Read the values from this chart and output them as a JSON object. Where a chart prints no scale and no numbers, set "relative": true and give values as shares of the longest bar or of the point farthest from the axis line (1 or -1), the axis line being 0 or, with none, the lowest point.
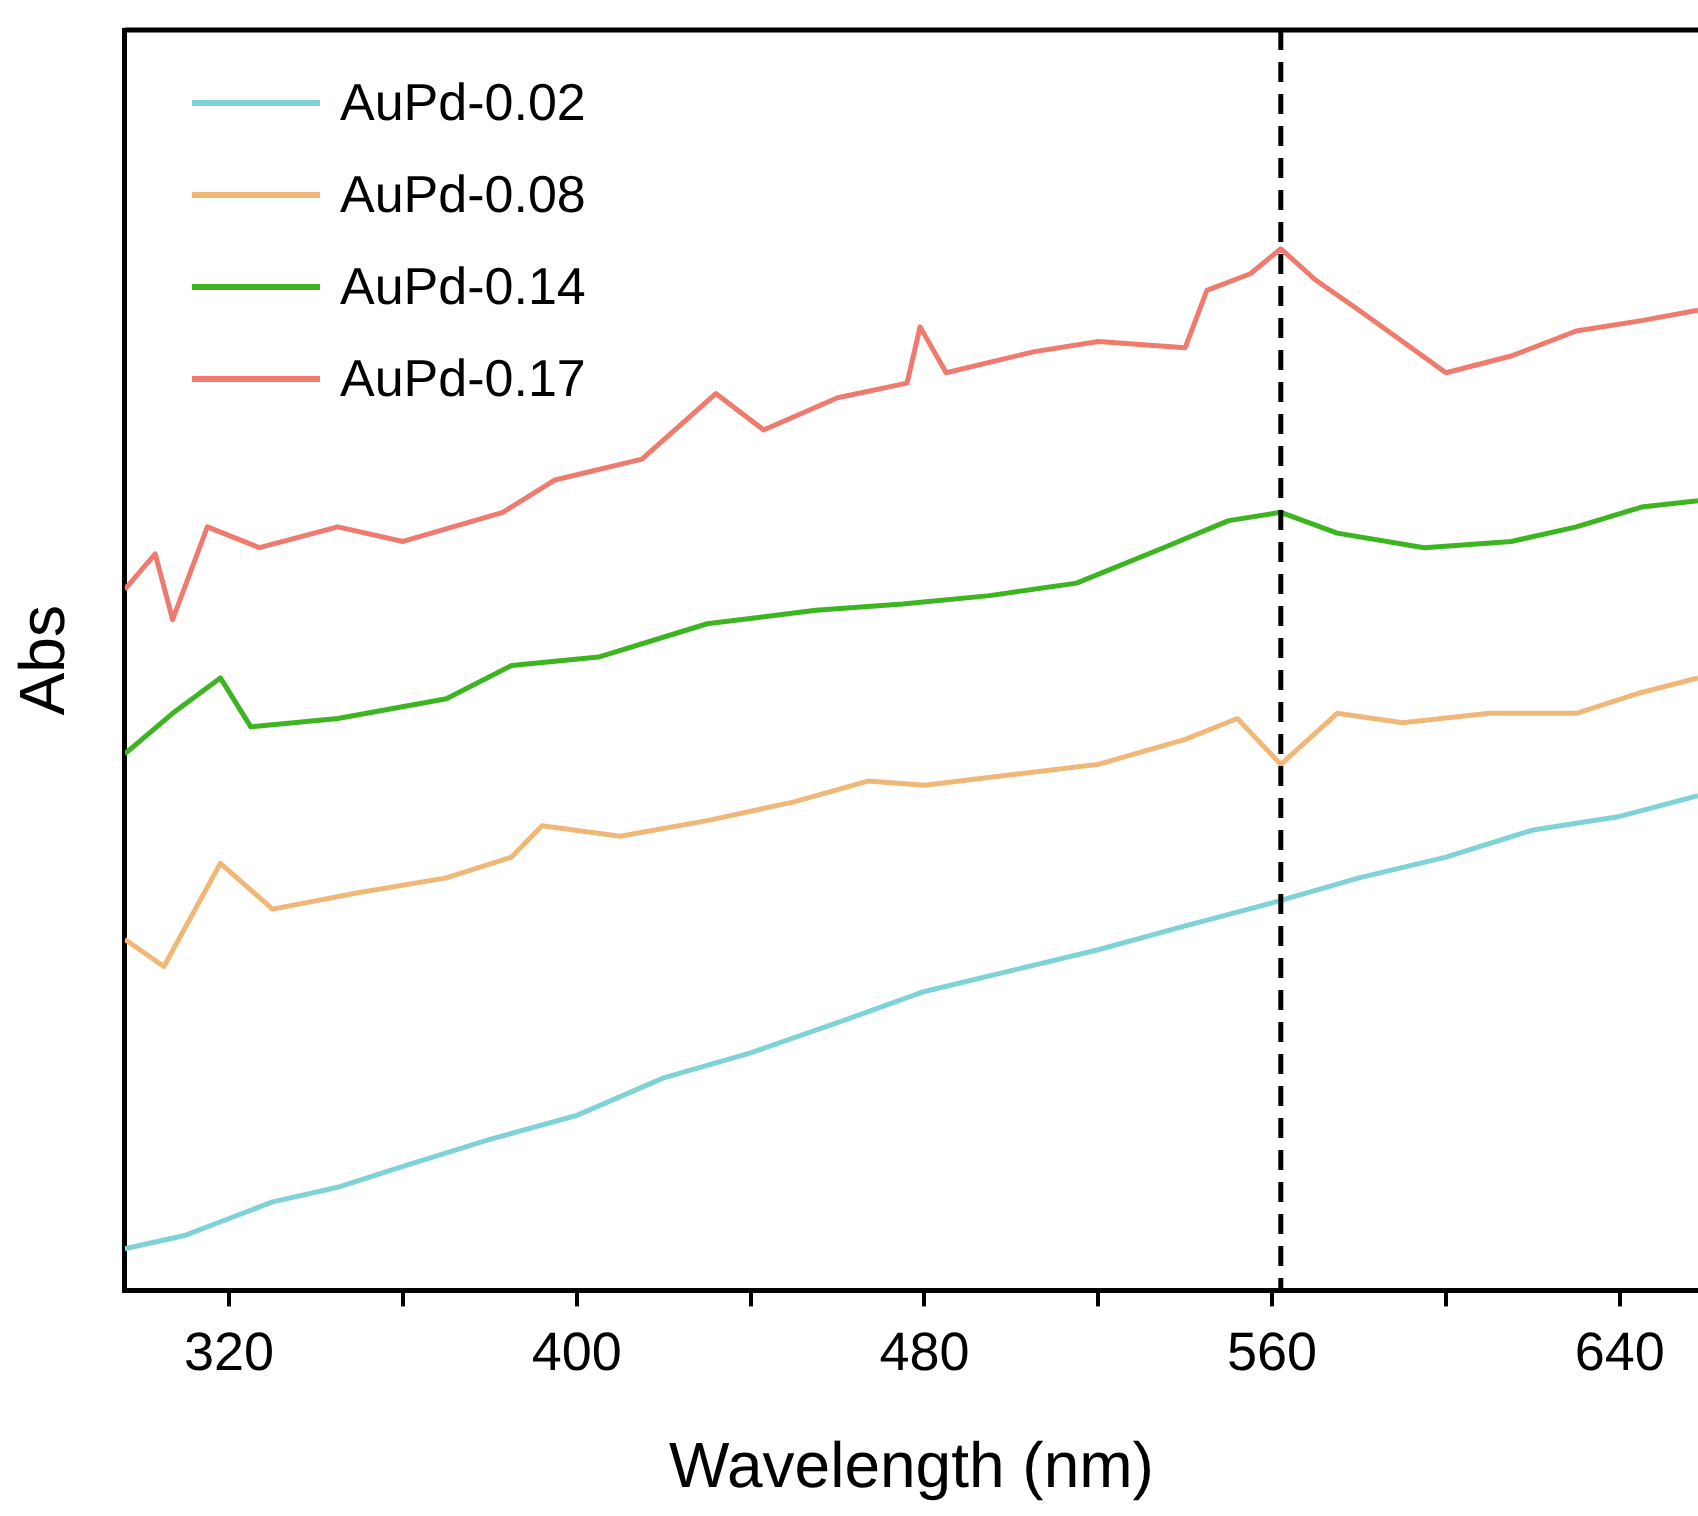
{
  "chart_data": {
    "type": "line",
    "xlabel": "Wavelength (nm)",
    "ylabel": "Abs",
    "relative": true,
    "xlim": [
      296,
      658
    ],
    "xticks": [
      320,
      {
        "value": 360,
        "label": null
      },
      400,
      {
        "value": 440,
        "label": null
      },
      480,
      {
        "value": 520,
        "label": null
      },
      560,
      {
        "value": 600,
        "label": null
      },
      640
    ],
    "legend": "top left",
    "marker": "none",
    "line_style": "solid",
    "grid": false,
    "ref_lines": [
      {
        "axis": "x",
        "value": 562,
        "label": null,
        "color": "#000000",
        "line_style": "dashed"
      }
    ],
    "series": [
      {
        "name": "AuPd-0.02",
        "color": "#7fd3d6",
        "x": [
          296,
          310,
          320,
          330,
          345,
          360,
          380,
          400,
          420,
          440,
          460,
          480,
          500,
          520,
          540,
          560,
          580,
          600,
          620,
          640,
          658
        ],
        "values": [
          0.04,
          0.053,
          0.069,
          0.085,
          0.099,
          0.119,
          0.145,
          0.168,
          0.204,
          0.228,
          0.257,
          0.287,
          0.307,
          0.327,
          0.35,
          0.372,
          0.396,
          0.416,
          0.442,
          0.455,
          0.475
        ]
      },
      {
        "name": "AuPd-0.08",
        "color": "#f0b878",
        "x": [
          296,
          305,
          318,
          330,
          350,
          370,
          385,
          392,
          410,
          430,
          450,
          467,
          480,
          500,
          520,
          540,
          552,
          562,
          575,
          590,
          610,
          630,
          645,
          658
        ],
        "values": [
          0.337,
          0.311,
          0.41,
          0.366,
          0.382,
          0.396,
          0.416,
          0.446,
          0.436,
          0.451,
          0.469,
          0.489,
          0.485,
          0.495,
          0.505,
          0.529,
          0.549,
          0.505,
          0.554,
          0.545,
          0.554,
          0.554,
          0.574,
          0.588
        ]
      },
      {
        "name": "AuPd-0.14",
        "color": "#3cb521",
        "x": [
          296,
          307,
          318,
          325,
          345,
          370,
          385,
          405,
          430,
          455,
          475,
          495,
          515,
          535,
          550,
          562,
          575,
          595,
          615,
          630,
          645,
          658
        ],
        "values": [
          0.515,
          0.554,
          0.588,
          0.541,
          0.549,
          0.568,
          0.6,
          0.608,
          0.64,
          0.653,
          0.659,
          0.667,
          0.679,
          0.713,
          0.739,
          0.747,
          0.727,
          0.713,
          0.719,
          0.733,
          0.752,
          0.758
        ]
      },
      {
        "name": "AuPd-0.17",
        "color": "#ef7b6e",
        "x": [
          296,
          303,
          307,
          315,
          327,
          345,
          360,
          383,
          395,
          415,
          432,
          443,
          460,
          476,
          479,
          485,
          505,
          520,
          540,
          545,
          555,
          562,
          570,
          580,
          590,
          600,
          615,
          630,
          645,
          658
        ],
        "values": [
          0.673,
          0.707,
          0.644,
          0.733,
          0.713,
          0.733,
          0.719,
          0.747,
          0.778,
          0.798,
          0.861,
          0.826,
          0.857,
          0.871,
          0.925,
          0.881,
          0.901,
          0.911,
          0.905,
          0.96,
          0.976,
          1.0,
          0.97,
          0.941,
          0.911,
          0.881,
          0.897,
          0.921,
          0.931,
          0.941
        ]
      }
    ]
  }
}
